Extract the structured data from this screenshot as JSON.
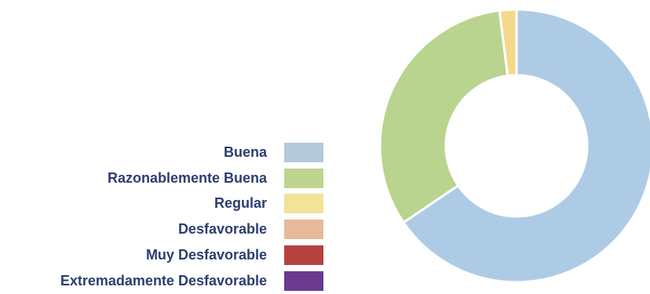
{
  "chart_data": {
    "type": "pie",
    "donut": true,
    "categories": [
      "Buena",
      "Razonablemente Buena",
      "Regular",
      "Desfavorable",
      "Muy Desfavorable",
      "Extremadamente Desfavorable"
    ],
    "values": [
      65.5,
      32.5,
      2.0,
      0,
      0,
      0
    ],
    "unit": "%",
    "colors": [
      "#aecbe6",
      "#b8d48e",
      "#f5d98a",
      "#e8b99a",
      "#b9403e",
      "#6e3a8e"
    ],
    "legend_colors": [
      "#b5c9d9",
      "#bdd58f",
      "#f2e29a",
      "#e6b99b",
      "#b5423c",
      "#6c3a8f"
    ],
    "legend_position": "left"
  }
}
